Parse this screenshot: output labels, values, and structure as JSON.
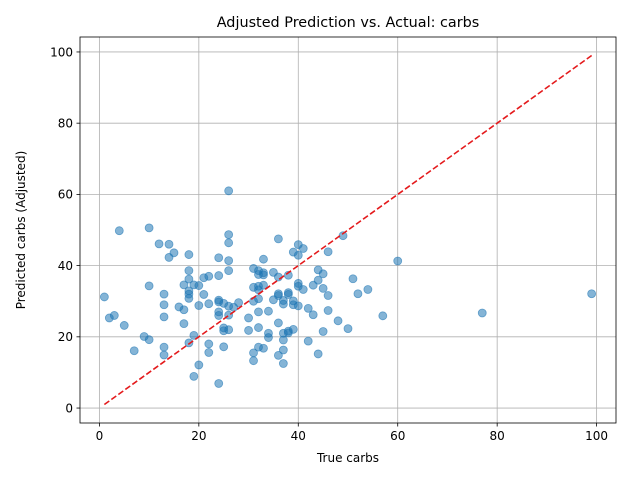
{
  "chart_data": {
    "type": "scatter",
    "title": "Adjusted Prediction vs. Actual: carbs",
    "xlabel": "True carbs",
    "ylabel": "Predicted carbs (Adjusted)",
    "xlim": [
      -3.9,
      103.9
    ],
    "ylim": [
      -4.2,
      104.2
    ],
    "xticks": [
      0,
      20,
      40,
      60,
      80,
      100
    ],
    "yticks": [
      0,
      20,
      40,
      60,
      80,
      100
    ],
    "grid": true,
    "colors": {
      "points": "#1f77b4",
      "reference": "#e41a1c"
    },
    "reference_line": {
      "name": "y = x",
      "from": [
        1,
        1
      ],
      "to": [
        99,
        99
      ]
    },
    "points": [
      {
        "x": 1,
        "y": 31.2
      },
      {
        "x": 2,
        "y": 25.3
      },
      {
        "x": 3,
        "y": 26.0
      },
      {
        "x": 4,
        "y": 49.8
      },
      {
        "x": 5,
        "y": 23.2
      },
      {
        "x": 7,
        "y": 16.1
      },
      {
        "x": 9,
        "y": 20.1
      },
      {
        "x": 10,
        "y": 50.6
      },
      {
        "x": 10,
        "y": 34.3
      },
      {
        "x": 10,
        "y": 19.2
      },
      {
        "x": 12,
        "y": 46.1
      },
      {
        "x": 13,
        "y": 32.0
      },
      {
        "x": 13,
        "y": 29.0
      },
      {
        "x": 13,
        "y": 25.6
      },
      {
        "x": 13,
        "y": 17.1
      },
      {
        "x": 13,
        "y": 14.9
      },
      {
        "x": 14,
        "y": 46.0
      },
      {
        "x": 14,
        "y": 42.3
      },
      {
        "x": 15,
        "y": 43.6
      },
      {
        "x": 16,
        "y": 28.4
      },
      {
        "x": 17,
        "y": 34.6
      },
      {
        "x": 17,
        "y": 27.6
      },
      {
        "x": 17,
        "y": 23.7
      },
      {
        "x": 18,
        "y": 43.1
      },
      {
        "x": 18,
        "y": 38.6
      },
      {
        "x": 18,
        "y": 36.2
      },
      {
        "x": 18,
        "y": 32.9
      },
      {
        "x": 18,
        "y": 32.0
      },
      {
        "x": 18,
        "y": 30.8
      },
      {
        "x": 18,
        "y": 18.3
      },
      {
        "x": 19,
        "y": 34.6
      },
      {
        "x": 19,
        "y": 20.4
      },
      {
        "x": 19,
        "y": 8.9
      },
      {
        "x": 20,
        "y": 34.4
      },
      {
        "x": 20,
        "y": 28.8
      },
      {
        "x": 20,
        "y": 12.1
      },
      {
        "x": 21,
        "y": 36.6
      },
      {
        "x": 21,
        "y": 31.9
      },
      {
        "x": 22,
        "y": 37.0
      },
      {
        "x": 22,
        "y": 29.3
      },
      {
        "x": 22,
        "y": 18.0
      },
      {
        "x": 22,
        "y": 15.6
      },
      {
        "x": 24,
        "y": 42.2
      },
      {
        "x": 24,
        "y": 37.2
      },
      {
        "x": 24,
        "y": 30.3
      },
      {
        "x": 24,
        "y": 29.8
      },
      {
        "x": 24,
        "y": 27.0
      },
      {
        "x": 24,
        "y": 26.0
      },
      {
        "x": 24,
        "y": 6.9
      },
      {
        "x": 25,
        "y": 29.4
      },
      {
        "x": 25,
        "y": 22.5
      },
      {
        "x": 25,
        "y": 21.7
      },
      {
        "x": 25,
        "y": 17.2
      },
      {
        "x": 26,
        "y": 61.0
      },
      {
        "x": 26,
        "y": 48.7
      },
      {
        "x": 26,
        "y": 46.4
      },
      {
        "x": 26,
        "y": 41.4
      },
      {
        "x": 26,
        "y": 38.6
      },
      {
        "x": 26,
        "y": 28.6
      },
      {
        "x": 26,
        "y": 26.1
      },
      {
        "x": 26,
        "y": 22.0
      },
      {
        "x": 27,
        "y": 28.3
      },
      {
        "x": 28,
        "y": 29.6
      },
      {
        "x": 30,
        "y": 25.3
      },
      {
        "x": 30,
        "y": 21.8
      },
      {
        "x": 31,
        "y": 39.2
      },
      {
        "x": 31,
        "y": 33.9
      },
      {
        "x": 31,
        "y": 30.0
      },
      {
        "x": 31,
        "y": 15.5
      },
      {
        "x": 31,
        "y": 13.3
      },
      {
        "x": 32,
        "y": 38.6
      },
      {
        "x": 32,
        "y": 37.5
      },
      {
        "x": 32,
        "y": 34.2
      },
      {
        "x": 32,
        "y": 33.2
      },
      {
        "x": 32,
        "y": 30.7
      },
      {
        "x": 32,
        "y": 27.0
      },
      {
        "x": 32,
        "y": 22.6
      },
      {
        "x": 32,
        "y": 17.1
      },
      {
        "x": 33,
        "y": 41.8
      },
      {
        "x": 33,
        "y": 38.0
      },
      {
        "x": 33,
        "y": 37.4
      },
      {
        "x": 33,
        "y": 34.5
      },
      {
        "x": 33,
        "y": 16.8
      },
      {
        "x": 34,
        "y": 27.2
      },
      {
        "x": 34,
        "y": 21.0
      },
      {
        "x": 34,
        "y": 19.8
      },
      {
        "x": 35,
        "y": 38.1
      },
      {
        "x": 35,
        "y": 30.4
      },
      {
        "x": 36,
        "y": 47.5
      },
      {
        "x": 36,
        "y": 36.8
      },
      {
        "x": 36,
        "y": 32.1
      },
      {
        "x": 36,
        "y": 31.6
      },
      {
        "x": 36,
        "y": 23.9
      },
      {
        "x": 36,
        "y": 14.8
      },
      {
        "x": 37,
        "y": 30.2
      },
      {
        "x": 37,
        "y": 29.2
      },
      {
        "x": 37,
        "y": 21.0
      },
      {
        "x": 37,
        "y": 19.1
      },
      {
        "x": 37,
        "y": 16.3
      },
      {
        "x": 37,
        "y": 12.5
      },
      {
        "x": 38,
        "y": 37.3
      },
      {
        "x": 38,
        "y": 32.4
      },
      {
        "x": 38,
        "y": 31.9
      },
      {
        "x": 38,
        "y": 21.6
      },
      {
        "x": 38,
        "y": 21.1
      },
      {
        "x": 39,
        "y": 43.8
      },
      {
        "x": 39,
        "y": 30.1
      },
      {
        "x": 39,
        "y": 29.0
      },
      {
        "x": 39,
        "y": 22.1
      },
      {
        "x": 40,
        "y": 45.9
      },
      {
        "x": 40,
        "y": 42.9
      },
      {
        "x": 40,
        "y": 35.0
      },
      {
        "x": 40,
        "y": 34.2
      },
      {
        "x": 40,
        "y": 28.7
      },
      {
        "x": 41,
        "y": 44.8
      },
      {
        "x": 41,
        "y": 33.3
      },
      {
        "x": 42,
        "y": 28.0
      },
      {
        "x": 42,
        "y": 18.8
      },
      {
        "x": 43,
        "y": 34.5
      },
      {
        "x": 43,
        "y": 26.2
      },
      {
        "x": 44,
        "y": 38.8
      },
      {
        "x": 44,
        "y": 35.9
      },
      {
        "x": 44,
        "y": 15.2
      },
      {
        "x": 45,
        "y": 37.7
      },
      {
        "x": 45,
        "y": 33.6
      },
      {
        "x": 45,
        "y": 21.5
      },
      {
        "x": 46,
        "y": 43.9
      },
      {
        "x": 46,
        "y": 31.6
      },
      {
        "x": 46,
        "y": 27.4
      },
      {
        "x": 48,
        "y": 24.5
      },
      {
        "x": 49,
        "y": 48.4
      },
      {
        "x": 50,
        "y": 22.3
      },
      {
        "x": 51,
        "y": 36.3
      },
      {
        "x": 52,
        "y": 32.1
      },
      {
        "x": 54,
        "y": 33.3
      },
      {
        "x": 57,
        "y": 25.9
      },
      {
        "x": 60,
        "y": 41.3
      },
      {
        "x": 77,
        "y": 26.7
      },
      {
        "x": 99,
        "y": 32.1
      }
    ]
  }
}
